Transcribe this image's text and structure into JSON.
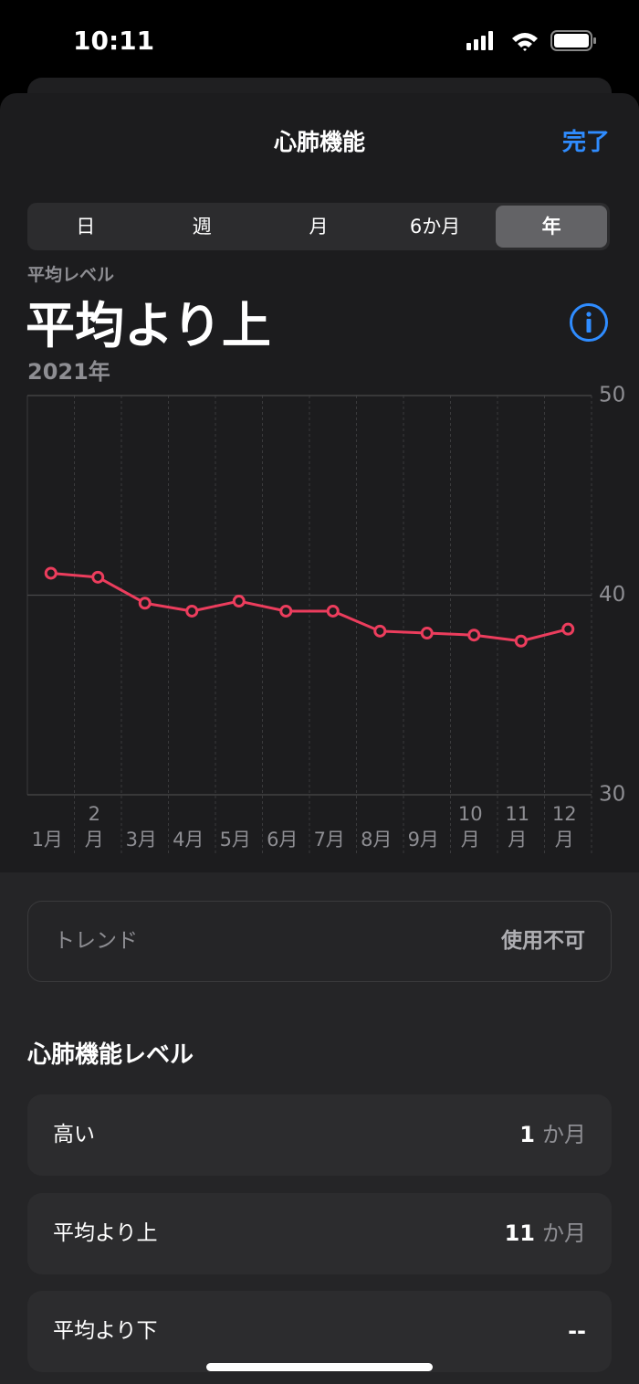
{
  "status_bar": {
    "time": "10:11"
  },
  "header": {
    "title": "心肺機能",
    "done": "完了"
  },
  "segments": [
    "日",
    "週",
    "月",
    "6か月",
    "年"
  ],
  "selected_segment": 4,
  "summary": {
    "label": "平均レベル",
    "value": "平均より上",
    "period": "2021年"
  },
  "chart": {
    "type": "line",
    "categories": [
      "1月",
      "2月",
      "3月",
      "4月",
      "5月",
      "6月",
      "7月",
      "8月",
      "9月",
      "10月",
      "11月",
      "12月"
    ],
    "values": [
      41.1,
      40.9,
      39.6,
      39.2,
      39.7,
      39.2,
      39.2,
      38.2,
      38.1,
      38.0,
      37.7,
      38.3
    ],
    "color": "#ec3d5d",
    "ylim": [
      30,
      50
    ],
    "yticks": [
      30,
      40,
      50
    ],
    "grid": true
  },
  "trend": {
    "label": "トレンド",
    "value": "使用不可"
  },
  "levels": {
    "title": "心肺機能レベル",
    "rows": [
      {
        "label": "高い",
        "count": "1",
        "unit": "か月"
      },
      {
        "label": "平均より上",
        "count": "11",
        "unit": "か月"
      },
      {
        "label": "平均より下",
        "count": "--"
      }
    ]
  }
}
